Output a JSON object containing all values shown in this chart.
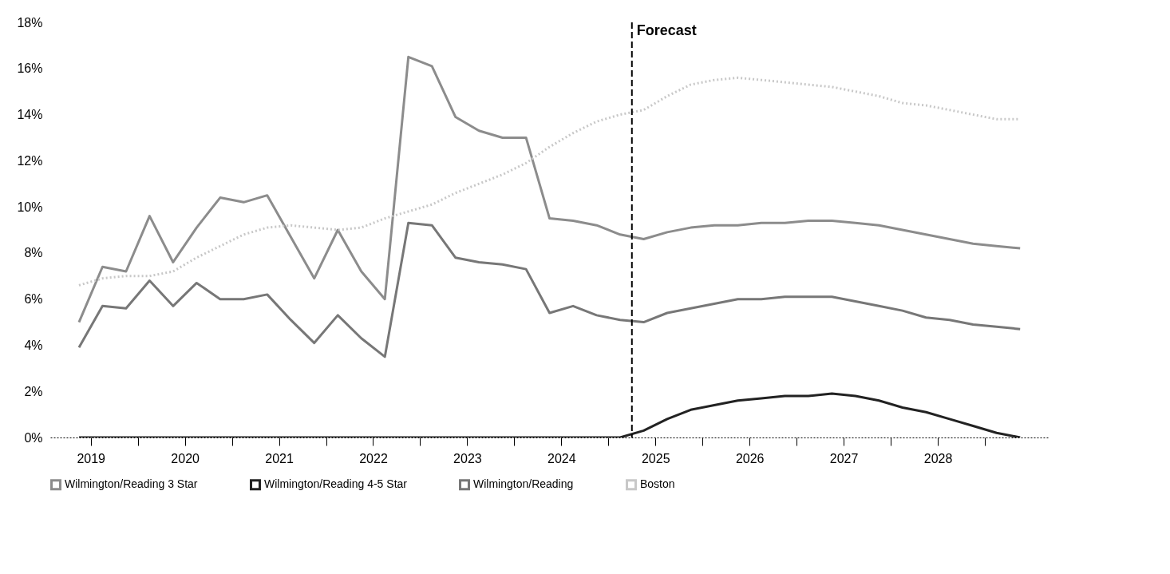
{
  "chart_data": {
    "type": "line",
    "x": [
      2019.375,
      2019.625,
      2019.875,
      2020.125,
      2020.375,
      2020.625,
      2020.875,
      2021.125,
      2021.375,
      2021.625,
      2021.875,
      2022.125,
      2022.375,
      2022.625,
      2022.875,
      2023.125,
      2023.375,
      2023.625,
      2023.875,
      2024.125,
      2024.375,
      2024.625,
      2024.875,
      2025.125,
      2025.375,
      2025.625,
      2025.875,
      2026.125,
      2026.375,
      2026.625,
      2026.875,
      2027.125,
      2027.375,
      2027.625,
      2027.875,
      2028.125,
      2028.375,
      2028.625,
      2028.875,
      2029.125,
      2029.375
    ],
    "series": [
      {
        "name": "Wilmington/Reading 3 Star",
        "color": "#8c8c8c",
        "line_style": "solid",
        "values": [
          5.0,
          7.4,
          7.2,
          9.6,
          7.6,
          9.1,
          10.4,
          10.2,
          10.5,
          8.7,
          6.9,
          9.0,
          7.2,
          6.0,
          16.5,
          16.1,
          13.9,
          13.3,
          13.0,
          13.0,
          9.5,
          9.4,
          9.2,
          8.8,
          8.6,
          8.9,
          9.1,
          9.2,
          9.2,
          9.3,
          9.3,
          9.4,
          9.4,
          9.3,
          9.2,
          9.0,
          8.8,
          8.6,
          8.4,
          8.3,
          8.2
        ]
      },
      {
        "name": "Wilmington/Reading 4-5 Star",
        "color": "#222222",
        "line_style": "solid",
        "values": [
          0,
          0,
          0,
          0,
          0,
          0,
          0,
          0,
          0,
          0,
          0,
          0,
          0,
          0,
          0,
          0,
          0,
          0,
          0,
          0,
          0,
          0,
          0,
          0,
          0.3,
          0.8,
          1.2,
          1.4,
          1.6,
          1.7,
          1.8,
          1.8,
          1.9,
          1.8,
          1.6,
          1.3,
          1.1,
          0.8,
          0.5,
          0.2,
          0
        ]
      },
      {
        "name": "Wilmington/Reading",
        "color": "#777777",
        "line_style": "solid",
        "values": [
          3.9,
          5.7,
          5.6,
          6.8,
          5.7,
          6.7,
          6.0,
          6.0,
          6.2,
          5.1,
          4.1,
          5.3,
          4.3,
          3.5,
          9.3,
          9.2,
          7.8,
          7.6,
          7.5,
          7.3,
          5.4,
          5.7,
          5.3,
          5.1,
          5.0,
          5.4,
          5.6,
          5.8,
          6.0,
          6.0,
          6.1,
          6.1,
          6.1,
          5.9,
          5.7,
          5.5,
          5.2,
          5.1,
          4.9,
          4.8,
          4.7
        ]
      },
      {
        "name": "Boston",
        "color": "#c8c8c8",
        "line_style": "dotted",
        "values": [
          6.6,
          6.9,
          7.0,
          7.0,
          7.2,
          7.8,
          8.3,
          8.8,
          9.1,
          9.2,
          9.1,
          9.0,
          9.1,
          9.5,
          9.8,
          10.1,
          10.6,
          11.0,
          11.4,
          11.9,
          12.6,
          13.2,
          13.7,
          14.0,
          14.2,
          14.8,
          15.3,
          15.5,
          15.6,
          15.5,
          15.4,
          15.3,
          15.2,
          15.0,
          14.8,
          14.5,
          14.4,
          14.2,
          14.0,
          13.8,
          13.8
        ]
      }
    ],
    "xlim": [
      2019.07,
      2029.67
    ],
    "xticks": [
      {
        "value": 2019.5,
        "label": "2019"
      },
      {
        "value": 2020,
        "label": null
      },
      {
        "value": 2020.5,
        "label": "2020"
      },
      {
        "value": 2021,
        "label": null
      },
      {
        "value": 2021.5,
        "label": "2021"
      },
      {
        "value": 2022,
        "label": null
      },
      {
        "value": 2022.5,
        "label": "2022"
      },
      {
        "value": 2023,
        "label": null
      },
      {
        "value": 2023.5,
        "label": "2023"
      },
      {
        "value": 2024,
        "label": null
      },
      {
        "value": 2024.5,
        "label": "2024"
      },
      {
        "value": 2025,
        "label": null
      },
      {
        "value": 2025.5,
        "label": "2025"
      },
      {
        "value": 2026,
        "label": null
      },
      {
        "value": 2026.5,
        "label": "2026"
      },
      {
        "value": 2027,
        "label": null
      },
      {
        "value": 2027.5,
        "label": "2027"
      },
      {
        "value": 2028,
        "label": null
      },
      {
        "value": 2028.5,
        "label": "2028"
      },
      {
        "value": 2029,
        "label": null
      }
    ],
    "ylim": [
      0,
      18
    ],
    "yticks": [
      {
        "value": 0,
        "label": "0%"
      },
      {
        "value": 2,
        "label": "2%"
      },
      {
        "value": 4,
        "label": "4%"
      },
      {
        "value": 6,
        "label": "6%"
      },
      {
        "value": 8,
        "label": "8%"
      },
      {
        "value": 10,
        "label": "10%"
      },
      {
        "value": 12,
        "label": "12%"
      },
      {
        "value": 14,
        "label": "14%"
      },
      {
        "value": 16,
        "label": "16%"
      },
      {
        "value": 18,
        "label": "18%"
      }
    ],
    "ref_lines": [
      {
        "axis": "x",
        "value": 2025.25,
        "label": "Forecast",
        "color": "#000000",
        "line_style": "dashed"
      }
    ],
    "legend": "bottom"
  }
}
